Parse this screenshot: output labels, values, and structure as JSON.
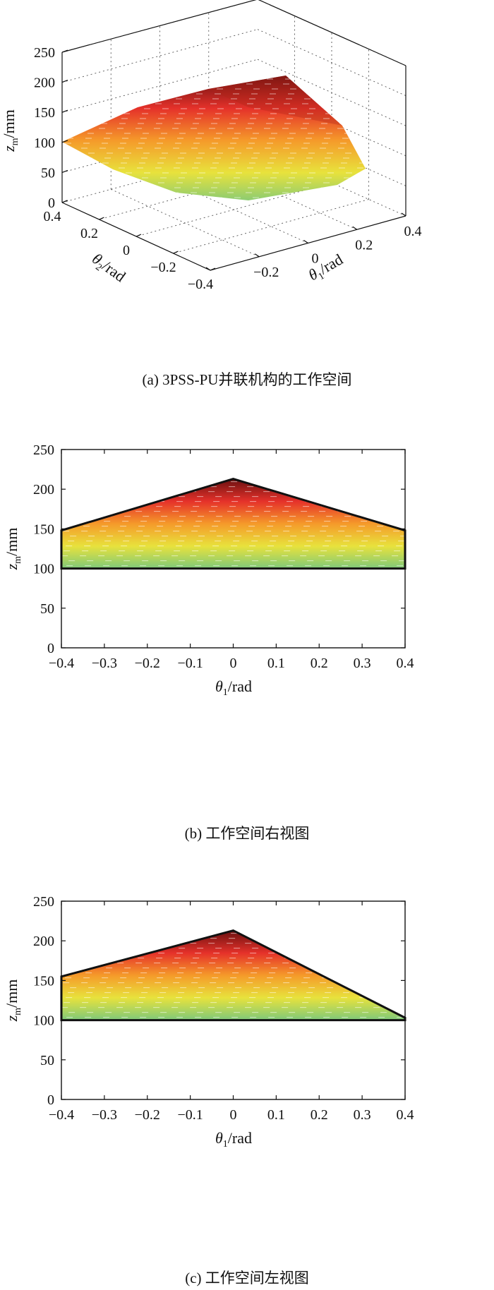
{
  "chart_data": [
    {
      "type": "scatter",
      "view": "3d",
      "caption": "(a) 3PSS-PU并联机构的工作空间",
      "zlabel": "z_m/mm",
      "zlabel_main": "z",
      "zlabel_sub": "m",
      "zlabel_unit": "/mm",
      "xlabel_main": "θ",
      "xlabel_sub": "1",
      "xlabel_unit": "/rad",
      "ylabel_main": "θ",
      "ylabel_sub": "2",
      "ylabel_unit": "/rad",
      "zticks": [
        "0",
        "50",
        "100",
        "150",
        "200",
        "250"
      ],
      "zlim": [
        0,
        250
      ],
      "x_ticks": [
        "−0.2",
        "0",
        "0.2",
        "0.4"
      ],
      "y_ticks": [
        "0.4",
        "0.2",
        "0",
        "−0.2",
        "−0.4"
      ],
      "x_range": [
        -0.4,
        0.4
      ],
      "y_range": [
        -0.4,
        0.4
      ],
      "colormap": [
        "#7fc97a",
        "#e8e23c",
        "#f59a2a",
        "#e5312a",
        "#6a1010"
      ],
      "surface": {
        "apex": {
          "theta1": 0.4,
          "theta2": 0.4,
          "z": 213
        },
        "vertices": [
          {
            "theta1": 0.4,
            "theta2": 0.4,
            "z": 213
          },
          {
            "theta1": 0.4,
            "theta2": -0.4,
            "z": 150
          },
          {
            "theta1": -0.4,
            "theta2": -0.4,
            "z": 100
          },
          {
            "theta1": -0.4,
            "theta2": 0.4,
            "z": 150
          }
        ]
      }
    },
    {
      "type": "area",
      "view": "right",
      "caption": "(b) 工作空间右视图",
      "ylabel_main": "z",
      "ylabel_sub": "m",
      "ylabel_unit": "/mm",
      "xlabel_main": "θ",
      "xlabel_sub": "1",
      "xlabel_unit": "/rad",
      "xlim": [
        -0.4,
        0.4
      ],
      "ylim": [
        0,
        250
      ],
      "xticks": [
        -0.4,
        -0.3,
        -0.2,
        -0.1,
        0,
        0.1,
        0.2,
        0.3,
        0.4
      ],
      "xtick_labels": [
        "−0.4",
        "−0.3",
        "−0.2",
        "−0.1",
        "0",
        "0.1",
        "0.2",
        "0.3",
        "0.4"
      ],
      "yticks": [
        0,
        50,
        100,
        150,
        200,
        250
      ],
      "ytick_labels": [
        "0",
        "50",
        "100",
        "150",
        "200",
        "250"
      ],
      "outline": [
        {
          "x": -0.4,
          "y": 100
        },
        {
          "x": -0.4,
          "y": 148
        },
        {
          "x": 0,
          "y": 213
        },
        {
          "x": 0.4,
          "y": 148
        },
        {
          "x": 0.4,
          "y": 100
        }
      ],
      "colormap": [
        "#7fc97a",
        "#e8e23c",
        "#f59a2a",
        "#e5312a",
        "#6a1010"
      ]
    },
    {
      "type": "area",
      "view": "left",
      "caption": "(c) 工作空间左视图",
      "ylabel_main": "z",
      "ylabel_sub": "m",
      "ylabel_unit": "/mm",
      "xlabel_main": "θ",
      "xlabel_sub": "1",
      "xlabel_unit": "/rad",
      "xlim": [
        -0.4,
        0.4
      ],
      "ylim": [
        0,
        250
      ],
      "xticks": [
        -0.4,
        -0.3,
        -0.2,
        -0.1,
        0,
        0.1,
        0.2,
        0.3,
        0.4
      ],
      "xtick_labels": [
        "−0.4",
        "−0.3",
        "−0.2",
        "−0.1",
        "0",
        "0.1",
        "0.2",
        "0.3",
        "0.4"
      ],
      "yticks": [
        0,
        50,
        100,
        150,
        200,
        250
      ],
      "ytick_labels": [
        "0",
        "50",
        "100",
        "150",
        "200",
        "250"
      ],
      "outline": [
        {
          "x": -0.4,
          "y": 100
        },
        {
          "x": -0.4,
          "y": 155
        },
        {
          "x": 0,
          "y": 213
        },
        {
          "x": 0.4,
          "y": 103
        },
        {
          "x": 0.4,
          "y": 100
        }
      ],
      "colormap": [
        "#7fc97a",
        "#e8e23c",
        "#f59a2a",
        "#e5312a",
        "#6a1010"
      ]
    }
  ]
}
